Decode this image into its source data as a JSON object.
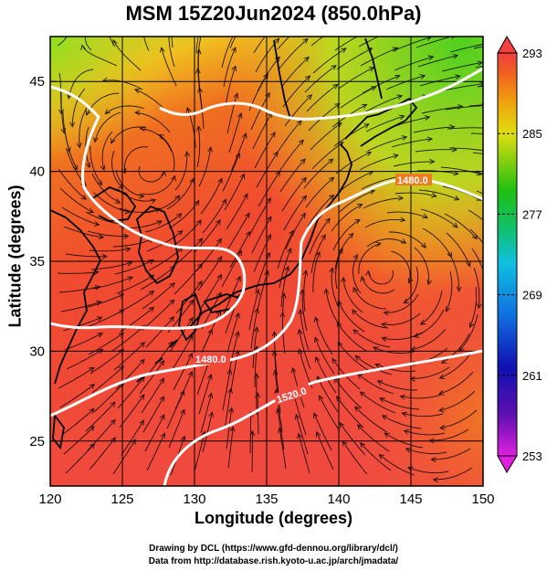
{
  "title": "MSM 15Z20Jun2024 (850.0hPa)",
  "x_axis_label": "Longitude (degrees)",
  "y_axis_label": "Latitude  (degrees)",
  "credits": {
    "line1": "Drawing by DCL (https://www.gfd-dennou.org/library/dcl/)",
    "line2": "Data from http://database.rish.kyoto-u.ac.jp/arch/jmadata/"
  },
  "map": {
    "lon_range": [
      120,
      150
    ],
    "lat_range": [
      22.5,
      47.5
    ],
    "lon_ticks": [
      120,
      125,
      130,
      135,
      140,
      145,
      150
    ],
    "lat_ticks": [
      25,
      30,
      35,
      40,
      45
    ],
    "grid": true,
    "shaded_field_colorbar": {
      "min": 253,
      "max": 293,
      "tick_labels": [
        293,
        285,
        277,
        269,
        261,
        253
      ],
      "colors": [
        "#e020e0",
        "#8000c0",
        "#1010b0",
        "#1060e0",
        "#10c0f0",
        "#10c080",
        "#10c010",
        "#60d010",
        "#c0e010",
        "#f0e010",
        "#f0a010",
        "#f06010",
        "#f04040"
      ]
    },
    "height_contours": [
      {
        "label": "1480.0",
        "color": "#ffffff"
      },
      {
        "label": "1480.0",
        "color": "#ffffff"
      },
      {
        "label": "1520.0",
        "color": "#ffffff"
      }
    ]
  }
}
